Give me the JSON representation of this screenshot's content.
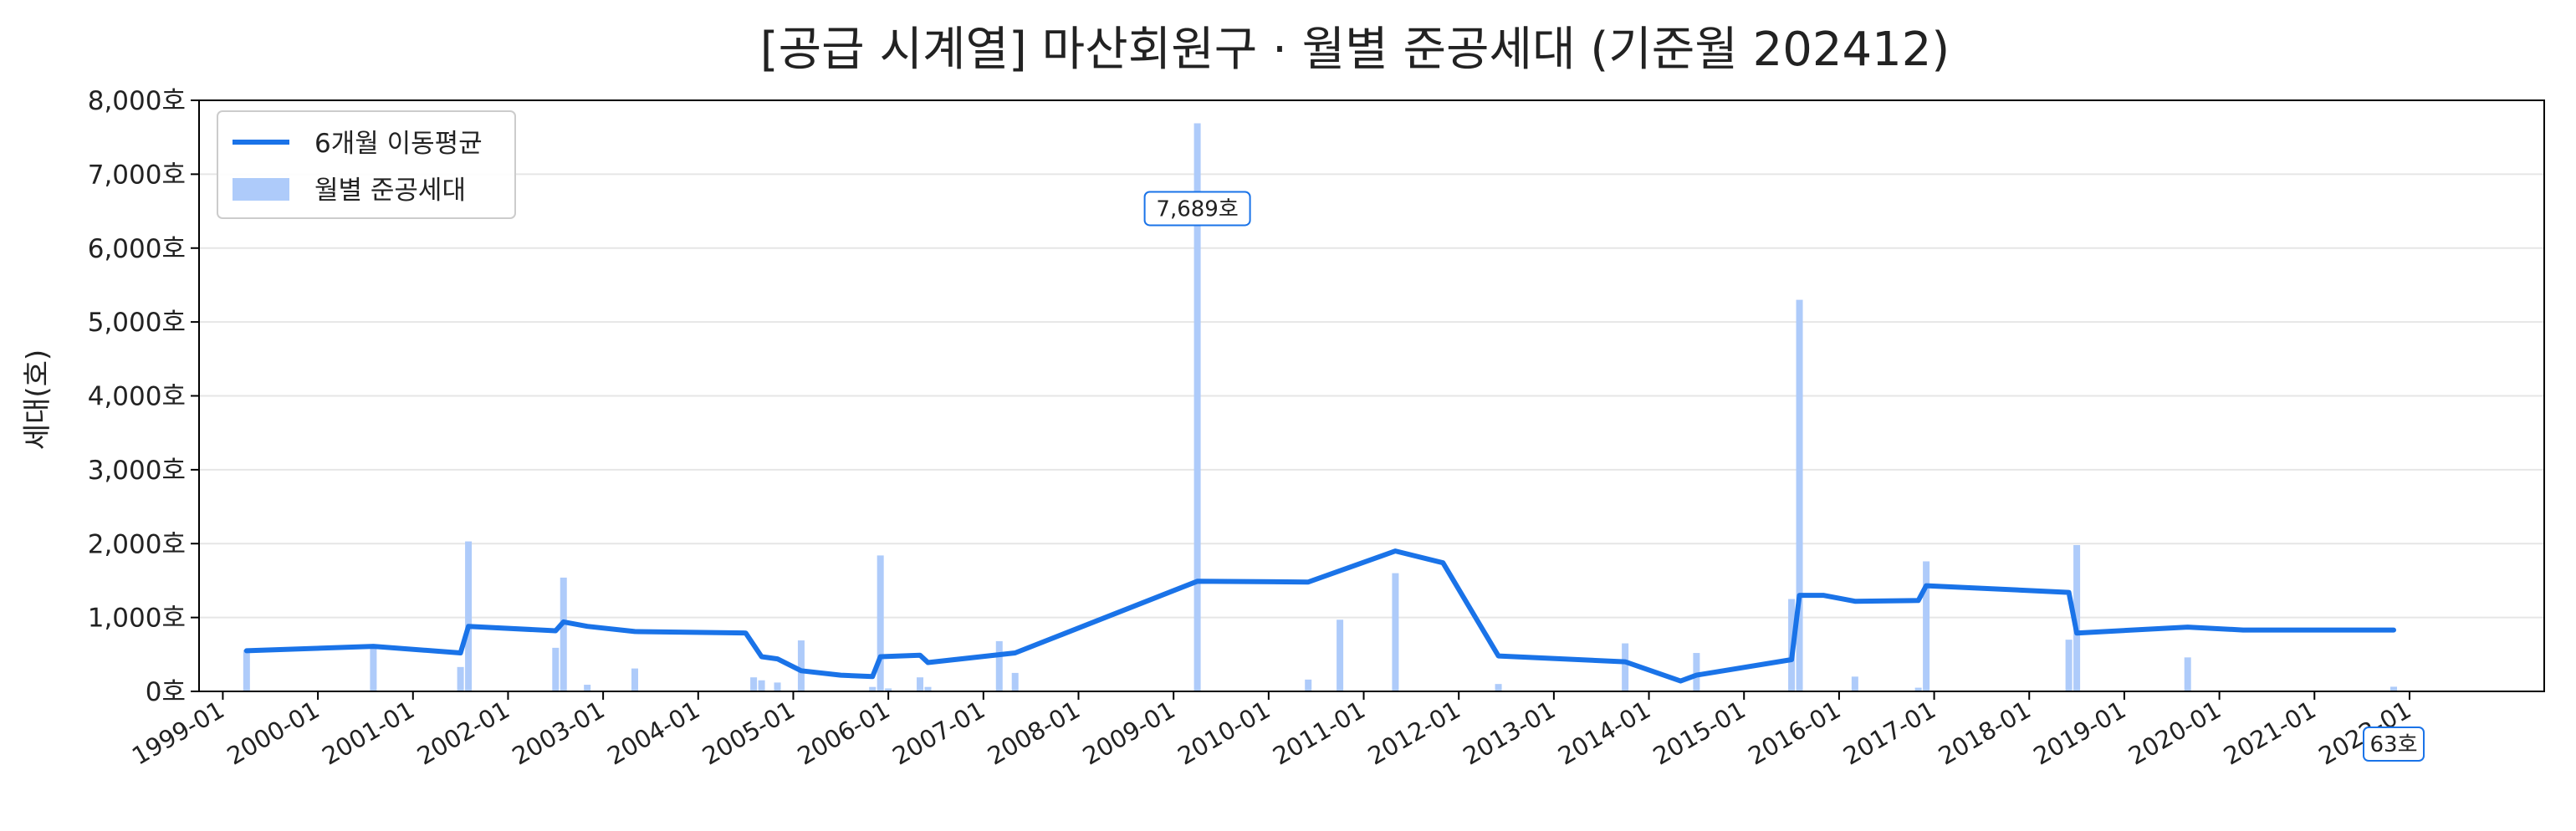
{
  "chart_data": {
    "type": "bar",
    "title": "[공급 시계열] 마산회원구 · 월별 준공세대 (기준월 202412)",
    "xlabel": "",
    "ylabel": "세대(호)",
    "ylim": [
      0,
      8000
    ],
    "xlim": [
      "1998-10",
      "2023-06"
    ],
    "y_ticks": [
      {
        "value": 0,
        "label": "0호"
      },
      {
        "value": 1000,
        "label": "1,000호"
      },
      {
        "value": 2000,
        "label": "2,000호"
      },
      {
        "value": 3000,
        "label": "3,000호"
      },
      {
        "value": 4000,
        "label": "4,000호"
      },
      {
        "value": 5000,
        "label": "5,000호"
      },
      {
        "value": 6000,
        "label": "6,000호"
      },
      {
        "value": 7000,
        "label": "7,000호"
      },
      {
        "value": 8000,
        "label": "8,000호"
      }
    ],
    "x_ticks": [
      {
        "date": "1999-01",
        "label": "1999-01"
      },
      {
        "date": "2000-01",
        "label": "2000-01"
      },
      {
        "date": "2001-01",
        "label": "2001-01"
      },
      {
        "date": "2002-01",
        "label": "2002-01"
      },
      {
        "date": "2003-01",
        "label": "2003-01"
      },
      {
        "date": "2004-01",
        "label": "2004-01"
      },
      {
        "date": "2005-01",
        "label": "2005-01"
      },
      {
        "date": "2006-01",
        "label": "2006-01"
      },
      {
        "date": "2007-01",
        "label": "2007-01"
      },
      {
        "date": "2008-01",
        "label": "2008-01"
      },
      {
        "date": "2009-01",
        "label": "2009-01"
      },
      {
        "date": "2010-01",
        "label": "2010-01"
      },
      {
        "date": "2011-01",
        "label": "2011-01"
      },
      {
        "date": "2012-01",
        "label": "2012-01"
      },
      {
        "date": "2013-01",
        "label": "2013-01"
      },
      {
        "date": "2014-01",
        "label": "2014-01"
      },
      {
        "date": "2015-01",
        "label": "2015-01"
      },
      {
        "date": "2016-01",
        "label": "2016-01"
      },
      {
        "date": "2017-01",
        "label": "2017-01"
      },
      {
        "date": "2018-01",
        "label": "2018-01"
      },
      {
        "date": "2019-01",
        "label": "2019-01"
      },
      {
        "date": "2020-01",
        "label": "2020-01"
      },
      {
        "date": "2021-01",
        "label": "2021-01"
      },
      {
        "date": "2022-01",
        "label": "2022-01"
      }
    ],
    "grid": true,
    "legend_position": "top-left",
    "colors": {
      "bar": "#aecbfa",
      "line": "#1a73e8",
      "annotation_border": "#1a73e8",
      "grid": "#e6e6e6",
      "axis": "#000000"
    },
    "series": [
      {
        "name": "월별 준공세대",
        "type": "bar",
        "points": [
          {
            "x": "1999-04",
            "y": 560
          },
          {
            "x": "2000-08",
            "y": 620
          },
          {
            "x": "2001-07",
            "y": 330
          },
          {
            "x": "2001-08",
            "y": 2030
          },
          {
            "x": "2002-07",
            "y": 590
          },
          {
            "x": "2002-08",
            "y": 1540
          },
          {
            "x": "2002-11",
            "y": 90
          },
          {
            "x": "2003-05",
            "y": 310
          },
          {
            "x": "2004-08",
            "y": 190
          },
          {
            "x": "2004-09",
            "y": 150
          },
          {
            "x": "2004-11",
            "y": 120
          },
          {
            "x": "2005-02",
            "y": 690
          },
          {
            "x": "2005-11",
            "y": 60
          },
          {
            "x": "2005-12",
            "y": 1840
          },
          {
            "x": "2006-01",
            "y": 40
          },
          {
            "x": "2006-05",
            "y": 190
          },
          {
            "x": "2006-06",
            "y": 60
          },
          {
            "x": "2007-03",
            "y": 680
          },
          {
            "x": "2007-05",
            "y": 250
          },
          {
            "x": "2009-04",
            "y": 7689
          },
          {
            "x": "2010-06",
            "y": 160
          },
          {
            "x": "2010-10",
            "y": 970
          },
          {
            "x": "2011-05",
            "y": 1600
          },
          {
            "x": "2012-06",
            "y": 100
          },
          {
            "x": "2013-10",
            "y": 650
          },
          {
            "x": "2014-07",
            "y": 520
          },
          {
            "x": "2015-07",
            "y": 1250
          },
          {
            "x": "2015-08",
            "y": 5300
          },
          {
            "x": "2016-03",
            "y": 200
          },
          {
            "x": "2016-11",
            "y": 50
          },
          {
            "x": "2016-12",
            "y": 1760
          },
          {
            "x": "2018-06",
            "y": 700
          },
          {
            "x": "2018-07",
            "y": 1980
          },
          {
            "x": "2019-09",
            "y": 460
          },
          {
            "x": "2021-11",
            "y": 63
          }
        ]
      },
      {
        "name": "6개월 이동평균",
        "type": "line",
        "points": [
          {
            "x": "1999-04",
            "y": 550
          },
          {
            "x": "2000-08",
            "y": 610
          },
          {
            "x": "2001-07",
            "y": 520
          },
          {
            "x": "2001-08",
            "y": 880
          },
          {
            "x": "2002-07",
            "y": 820
          },
          {
            "x": "2002-08",
            "y": 940
          },
          {
            "x": "2002-11",
            "y": 880
          },
          {
            "x": "2003-05",
            "y": 810
          },
          {
            "x": "2004-07",
            "y": 790
          },
          {
            "x": "2004-09",
            "y": 470
          },
          {
            "x": "2004-11",
            "y": 440
          },
          {
            "x": "2005-02",
            "y": 280
          },
          {
            "x": "2005-07",
            "y": 220
          },
          {
            "x": "2005-11",
            "y": 200
          },
          {
            "x": "2005-12",
            "y": 470
          },
          {
            "x": "2006-05",
            "y": 490
          },
          {
            "x": "2006-06",
            "y": 390
          },
          {
            "x": "2007-05",
            "y": 520
          },
          {
            "x": "2009-04",
            "y": 1490
          },
          {
            "x": "2010-06",
            "y": 1480
          },
          {
            "x": "2011-05",
            "y": 1900
          },
          {
            "x": "2011-11",
            "y": 1740
          },
          {
            "x": "2012-06",
            "y": 480
          },
          {
            "x": "2013-10",
            "y": 400
          },
          {
            "x": "2014-05",
            "y": 140
          },
          {
            "x": "2014-07",
            "y": 220
          },
          {
            "x": "2015-07",
            "y": 430
          },
          {
            "x": "2015-08",
            "y": 1300
          },
          {
            "x": "2015-11",
            "y": 1300
          },
          {
            "x": "2016-03",
            "y": 1220
          },
          {
            "x": "2016-11",
            "y": 1230
          },
          {
            "x": "2016-12",
            "y": 1430
          },
          {
            "x": "2018-06",
            "y": 1340
          },
          {
            "x": "2018-07",
            "y": 790
          },
          {
            "x": "2019-09",
            "y": 870
          },
          {
            "x": "2020-04",
            "y": 830
          },
          {
            "x": "2021-11",
            "y": 830
          }
        ]
      }
    ],
    "annotations": [
      {
        "x": "2009-04",
        "y": 7689,
        "text": "7,689호"
      },
      {
        "x": "2021-11",
        "y": 63,
        "text": "63호"
      }
    ]
  }
}
